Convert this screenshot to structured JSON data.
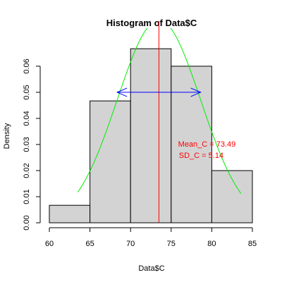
{
  "chart_data": {
    "type": "histogram",
    "title": "Histogram of Data$C",
    "xlabel": "Data$C",
    "ylabel": "Density",
    "xlim": [
      60,
      85
    ],
    "ylim": [
      0,
      0.067
    ],
    "x_ticks": [
      60,
      65,
      70,
      75,
      80,
      85
    ],
    "y_ticks": [
      0.0,
      0.01,
      0.02,
      0.03,
      0.04,
      0.05,
      0.06
    ],
    "y_tick_labels": [
      "0.00",
      "0.01",
      "0.02",
      "0.03",
      "0.04",
      "0.05",
      "0.06"
    ],
    "bins": [
      {
        "start": 60,
        "end": 65,
        "density": 0.0067
      },
      {
        "start": 65,
        "end": 70,
        "density": 0.0467
      },
      {
        "start": 70,
        "end": 75,
        "density": 0.0667
      },
      {
        "start": 75,
        "end": 80,
        "density": 0.06
      },
      {
        "start": 80,
        "end": 85,
        "density": 0.02
      }
    ],
    "bar_fill": "#d3d3d3",
    "normal_curve": {
      "mean": 73.49,
      "sd": 5.14,
      "x_from": 63.5,
      "x_to": 83.6,
      "color": "#00ee00"
    },
    "mean_line": {
      "x": 73.49,
      "color": "#ff0000"
    },
    "sd_arrow": {
      "x_from": 68.35,
      "x_to": 78.63,
      "y": 0.05,
      "color": "#0000ff"
    },
    "annotations": [
      {
        "text": "Mean_C = 73.49",
        "x": 79.4,
        "y": 0.0292,
        "color": "#ff0000"
      },
      {
        "text": "SD_C = 5.14",
        "x": 78.7,
        "y": 0.0248,
        "color": "#ff0000"
      }
    ],
    "grid": false,
    "legend": "none"
  }
}
